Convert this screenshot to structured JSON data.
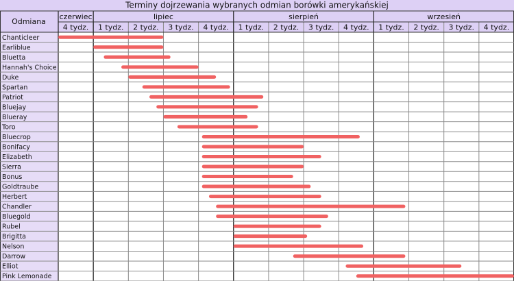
{
  "chart_data": {
    "type": "range-bar",
    "title": "Terminy dojrzewania wybranych odmian borówki amerykańskiej",
    "category_header": "Odmiana",
    "months": [
      {
        "name": "czerwiec",
        "span": 1
      },
      {
        "name": "lipiec",
        "span": 4
      },
      {
        "name": "sierpień",
        "span": 4
      },
      {
        "name": "wrzesień",
        "span": 4
      }
    ],
    "weeks": [
      "4 tydz.",
      "1 tydz.",
      "2 tydz.",
      "3 tydz.",
      "4 tydz.",
      "1 tydz.",
      "2 tydz.",
      "3 tydz.",
      "4 tydz.",
      "1 tydz.",
      "2 tydz.",
      "3 tydz.",
      "4 tydz."
    ],
    "xlim": [
      0,
      13
    ],
    "categories": [
      "Chanticleer",
      "Earliblue",
      "Bluetta",
      "Hannah's Choice",
      "Duke",
      "Spartan",
      "Patriot",
      "Bluejay",
      "Blueray",
      "Toro",
      "Bluecrop",
      "Bonifacy",
      "Elizabeth",
      "Sierra",
      "Bonus",
      "Goldtraube",
      "Herbert",
      "Chandler",
      "Bluegold",
      "Rubel",
      "Brigitta",
      "Nelson",
      "Darrow",
      "Elliot",
      "Pink Lemonade"
    ],
    "start": [
      0,
      1.0,
      1.3,
      1.8,
      2.0,
      2.4,
      2.6,
      2.8,
      3.0,
      3.4,
      4.1,
      4.1,
      4.1,
      4.1,
      4.1,
      4.1,
      4.3,
      4.5,
      4.5,
      5.0,
      5.0,
      5.0,
      6.7,
      8.2,
      8.5
    ],
    "end": [
      3.0,
      3.0,
      3.2,
      4.0,
      4.5,
      4.9,
      5.85,
      5.7,
      5.4,
      5.7,
      8.6,
      7.0,
      7.5,
      7.0,
      6.7,
      7.2,
      7.5,
      9.9,
      7.7,
      7.5,
      7.1,
      8.7,
      9.9,
      11.5,
      13.0
    ],
    "color": "#f06262"
  }
}
